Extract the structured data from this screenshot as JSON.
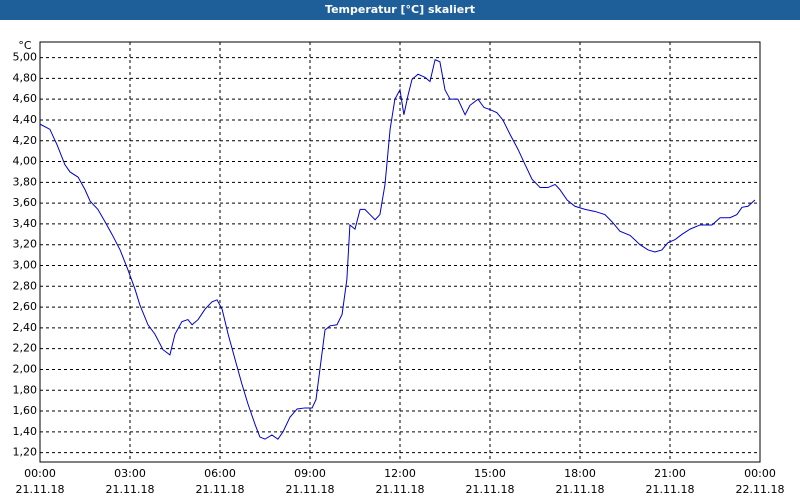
{
  "chart_data": {
    "type": "line",
    "title": "Temperatur [°C] skaliert",
    "y_unit": "°C",
    "xlim": [
      0,
      24
    ],
    "ylim": [
      1.11,
      5.15
    ],
    "grid": true,
    "xticks": [
      {
        "value": 0,
        "label": "00:00",
        "date": "21.11.18"
      },
      {
        "value": 3,
        "label": "03:00",
        "date": "21.11.18"
      },
      {
        "value": 6,
        "label": "06:00",
        "date": "21.11.18"
      },
      {
        "value": 9,
        "label": "09:00",
        "date": "21.11.18"
      },
      {
        "value": 12,
        "label": "12:00",
        "date": "21.11.18"
      },
      {
        "value": 15,
        "label": "15:00",
        "date": "21.11.18"
      },
      {
        "value": 18,
        "label": "18:00",
        "date": "21.11.18"
      },
      {
        "value": 21,
        "label": "21:00",
        "date": "21.11.18"
      },
      {
        "value": 24,
        "label": "00:00",
        "date": "22.11.18"
      }
    ],
    "yticks": [
      {
        "value": 1.2,
        "label": "1,20"
      },
      {
        "value": 1.4,
        "label": "1,40"
      },
      {
        "value": 1.6,
        "label": "1,60"
      },
      {
        "value": 1.8,
        "label": "1,80"
      },
      {
        "value": 2.0,
        "label": "2,00"
      },
      {
        "value": 2.2,
        "label": "2,20"
      },
      {
        "value": 2.4,
        "label": "2,40"
      },
      {
        "value": 2.6,
        "label": "2,60"
      },
      {
        "value": 2.8,
        "label": "2,80"
      },
      {
        "value": 3.0,
        "label": "3,00"
      },
      {
        "value": 3.2,
        "label": "3,20"
      },
      {
        "value": 3.4,
        "label": "3,40"
      },
      {
        "value": 3.6,
        "label": "3,60"
      },
      {
        "value": 3.8,
        "label": "3,80"
      },
      {
        "value": 4.0,
        "label": "4,00"
      },
      {
        "value": 4.2,
        "label": "4,20"
      },
      {
        "value": 4.4,
        "label": "4,40"
      },
      {
        "value": 4.6,
        "label": "4,60"
      },
      {
        "value": 4.8,
        "label": "4,80"
      },
      {
        "value": 5.0,
        "label": "5,00"
      }
    ],
    "x": [
      0,
      0.33,
      0.57,
      0.83,
      1,
      1.27,
      1.5,
      1.67,
      1.93,
      2.17,
      2.4,
      2.67,
      2.93,
      3.17,
      3.33,
      3.6,
      3.83,
      4.1,
      4.33,
      4.5,
      4.73,
      4.93,
      5.07,
      5.27,
      5.5,
      5.73,
      5.9,
      6.07,
      6.27,
      6.5,
      6.73,
      6.93,
      7.17,
      7.33,
      7.5,
      7.73,
      7.93,
      8.1,
      8.33,
      8.57,
      8.83,
      9.07,
      9.2,
      9.33,
      9.5,
      9.67,
      9.9,
      10.07,
      10.23,
      10.33,
      10.5,
      10.67,
      10.83,
      11,
      11.17,
      11.33,
      11.5,
      11.67,
      11.83,
      12,
      12.13,
      12.27,
      12.4,
      12.6,
      12.83,
      13,
      13.17,
      13.33,
      13.5,
      13.67,
      13.93,
      14.17,
      14.33,
      14.6,
      14.8,
      15,
      15.23,
      15.43,
      15.67,
      15.93,
      16.17,
      16.4,
      16.67,
      16.93,
      17.17,
      17.33,
      17.57,
      17.83,
      18.17,
      18.5,
      18.83,
      19.07,
      19.33,
      19.67,
      20,
      20.27,
      20.5,
      20.73,
      20.93,
      21.17,
      21.4,
      21.67,
      22,
      22.4,
      22.67,
      23,
      23.23,
      23.4,
      23.6,
      23.83
    ],
    "series": [
      {
        "color": "#0000cc",
        "values": [
          4.36,
          4.31,
          4.16,
          3.97,
          3.9,
          3.85,
          3.73,
          3.62,
          3.54,
          3.42,
          3.3,
          3.15,
          2.96,
          2.77,
          2.62,
          2.43,
          2.34,
          2.19,
          2.14,
          2.34,
          2.46,
          2.48,
          2.43,
          2.48,
          2.58,
          2.65,
          2.67,
          2.58,
          2.34,
          2.1,
          1.86,
          1.67,
          1.47,
          1.35,
          1.33,
          1.37,
          1.33,
          1.4,
          1.54,
          1.62,
          1.63,
          1.63,
          1.71,
          2.0,
          2.38,
          2.42,
          2.43,
          2.53,
          2.87,
          3.39,
          3.35,
          3.54,
          3.54,
          3.49,
          3.44,
          3.49,
          3.78,
          4.31,
          4.6,
          4.69,
          4.45,
          4.64,
          4.79,
          4.84,
          4.81,
          4.77,
          4.98,
          4.96,
          4.69,
          4.6,
          4.6,
          4.45,
          4.54,
          4.6,
          4.52,
          4.5,
          4.47,
          4.4,
          4.26,
          4.12,
          3.97,
          3.83,
          3.75,
          3.75,
          3.78,
          3.73,
          3.63,
          3.57,
          3.54,
          3.52,
          3.49,
          3.42,
          3.33,
          3.29,
          3.2,
          3.15,
          3.13,
          3.15,
          3.22,
          3.25,
          3.3,
          3.35,
          3.39,
          3.39,
          3.46,
          3.46,
          3.49,
          3.56,
          3.57,
          3.63
        ]
      }
    ]
  }
}
